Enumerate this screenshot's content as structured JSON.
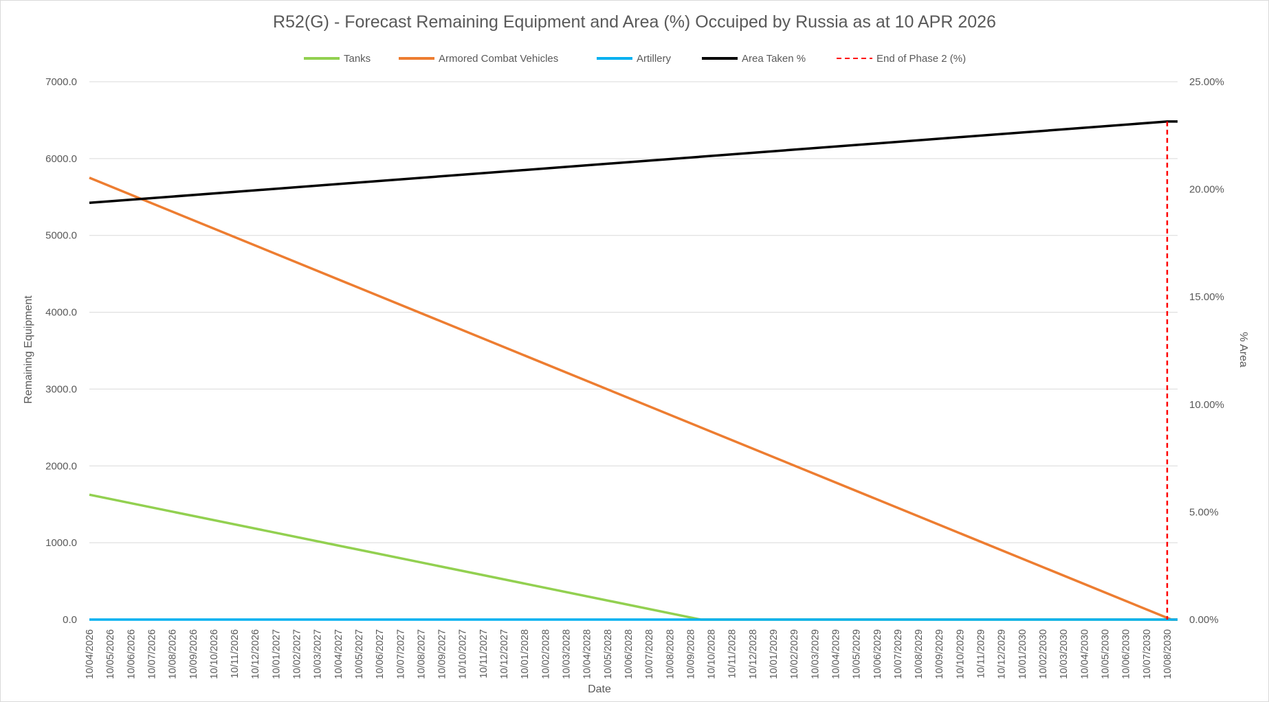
{
  "chart_data": {
    "type": "line",
    "title": "R52(G) - Forecast Remaining Equipment and Area (%) Occuiped by Russia as at 10 APR 2026",
    "xlabel": "Date",
    "ylabel": "Remaining Equipment",
    "y2label": "% Area",
    "ylim": [
      0,
      7000
    ],
    "y2lim": [
      0,
      0.25
    ],
    "yticks": [
      "0.0",
      "1000.0",
      "2000.0",
      "3000.0",
      "4000.0",
      "5000.0",
      "6000.0",
      "7000.0"
    ],
    "y2ticks": [
      "0.00%",
      "5.00%",
      "10.00%",
      "15.00%",
      "20.00%",
      "25.00%"
    ],
    "categories": [
      "10/04/2026",
      "10/05/2026",
      "10/06/2026",
      "10/07/2026",
      "10/08/2026",
      "10/09/2026",
      "10/10/2026",
      "10/11/2026",
      "10/12/2026",
      "10/01/2027",
      "10/02/2027",
      "10/03/2027",
      "10/04/2027",
      "10/05/2027",
      "10/06/2027",
      "10/07/2027",
      "10/08/2027",
      "10/09/2027",
      "10/10/2027",
      "10/11/2027",
      "10/12/2027",
      "10/01/2028",
      "10/02/2028",
      "10/03/2028",
      "10/04/2028",
      "10/05/2028",
      "10/06/2028",
      "10/07/2028",
      "10/08/2028",
      "10/09/2028",
      "10/10/2028",
      "10/11/2028",
      "10/12/2028",
      "10/01/2029",
      "10/02/2029",
      "10/03/2029",
      "10/04/2029",
      "10/05/2029",
      "10/06/2029",
      "10/07/2029",
      "10/08/2029",
      "10/09/2029",
      "10/10/2029",
      "10/11/2029",
      "10/12/2029",
      "10/01/2030",
      "10/02/2030",
      "10/03/2030",
      "10/04/2030",
      "10/05/2030",
      "10/06/2030",
      "10/07/2030",
      "10/08/2030"
    ],
    "grid": true,
    "legend_position": "top",
    "series": [
      {
        "name": "Tanks",
        "axis": "left",
        "color": "#92d050",
        "style": "solid",
        "points": [
          [
            0,
            1625
          ],
          [
            29.5,
            0
          ],
          [
            52.5,
            0
          ]
        ]
      },
      {
        "name": "Armored Combat Vehicles",
        "axis": "left",
        "color": "#ed7d31",
        "style": "solid",
        "points": [
          [
            0,
            5750
          ],
          [
            52.2,
            0
          ],
          [
            52.5,
            0
          ]
        ]
      },
      {
        "name": "Artillery",
        "axis": "left",
        "color": "#00b0f0",
        "style": "solid",
        "points": [
          [
            0,
            0
          ],
          [
            52.5,
            0
          ]
        ]
      },
      {
        "name": "Area Taken %",
        "axis": "right",
        "color": "#000000",
        "style": "solid",
        "points": [
          [
            0,
            0.1937
          ],
          [
            52.0,
            0.2315
          ],
          [
            52.5,
            0.2315
          ]
        ]
      },
      {
        "name": "End of Phase 2 (%)",
        "axis": "right",
        "color": "#ff0000",
        "style": "dashed",
        "points": [
          [
            52.0,
            0.2315
          ],
          [
            52.0,
            0
          ]
        ]
      }
    ]
  }
}
